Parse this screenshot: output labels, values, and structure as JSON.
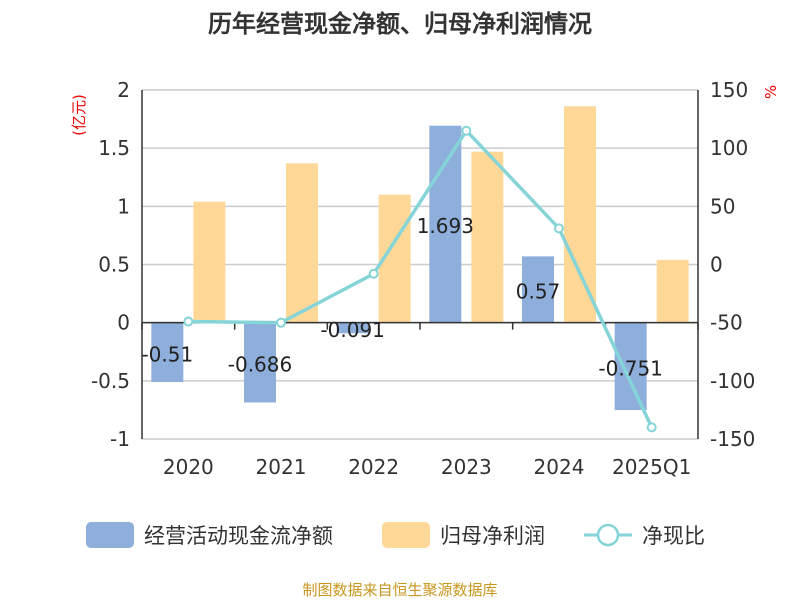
{
  "chart_data": {
    "type": "bar",
    "title": "历年经营现金净额、归母净利润情况",
    "categories": [
      "2020",
      "2021",
      "2022",
      "2023",
      "2024",
      "2025Q1"
    ],
    "left_axis": {
      "label": "(亿元)",
      "ylim": [
        -1,
        2
      ],
      "ticks": [
        "2",
        "1.5",
        "1",
        "0.5",
        "0",
        "-0.5",
        "-1"
      ],
      "tick_values": [
        2,
        1.5,
        1,
        0.5,
        0,
        -0.5,
        -1
      ]
    },
    "right_axis": {
      "label": "%",
      "ylim": [
        -150,
        150
      ],
      "ticks": [
        "150",
        "100",
        "50",
        "0",
        "-50",
        "-100",
        "-150"
      ],
      "tick_values": [
        150,
        100,
        50,
        0,
        -50,
        -100,
        -150
      ]
    },
    "series": [
      {
        "name": "经营活动现金流净额",
        "type": "bar",
        "axis": "left",
        "color": "#8eaedb",
        "values": [
          -0.51,
          -0.686,
          -0.091,
          1.693,
          0.57,
          -0.751
        ],
        "labels": [
          "-0.51",
          "-0.686",
          "-0.091",
          "1.693",
          "0.57",
          "-0.751"
        ]
      },
      {
        "name": "归母净利润",
        "type": "bar",
        "axis": "left",
        "color": "#ffd898",
        "values": [
          1.04,
          1.37,
          1.1,
          1.47,
          1.86,
          0.54
        ]
      },
      {
        "name": "净现比",
        "type": "line",
        "axis": "right",
        "color": "#85d4d8",
        "values": [
          -49,
          -50,
          -8,
          115,
          31,
          -140
        ]
      }
    ],
    "grid": true,
    "legend": "bottom"
  },
  "footer": "制图数据来自恒生聚源数据库"
}
